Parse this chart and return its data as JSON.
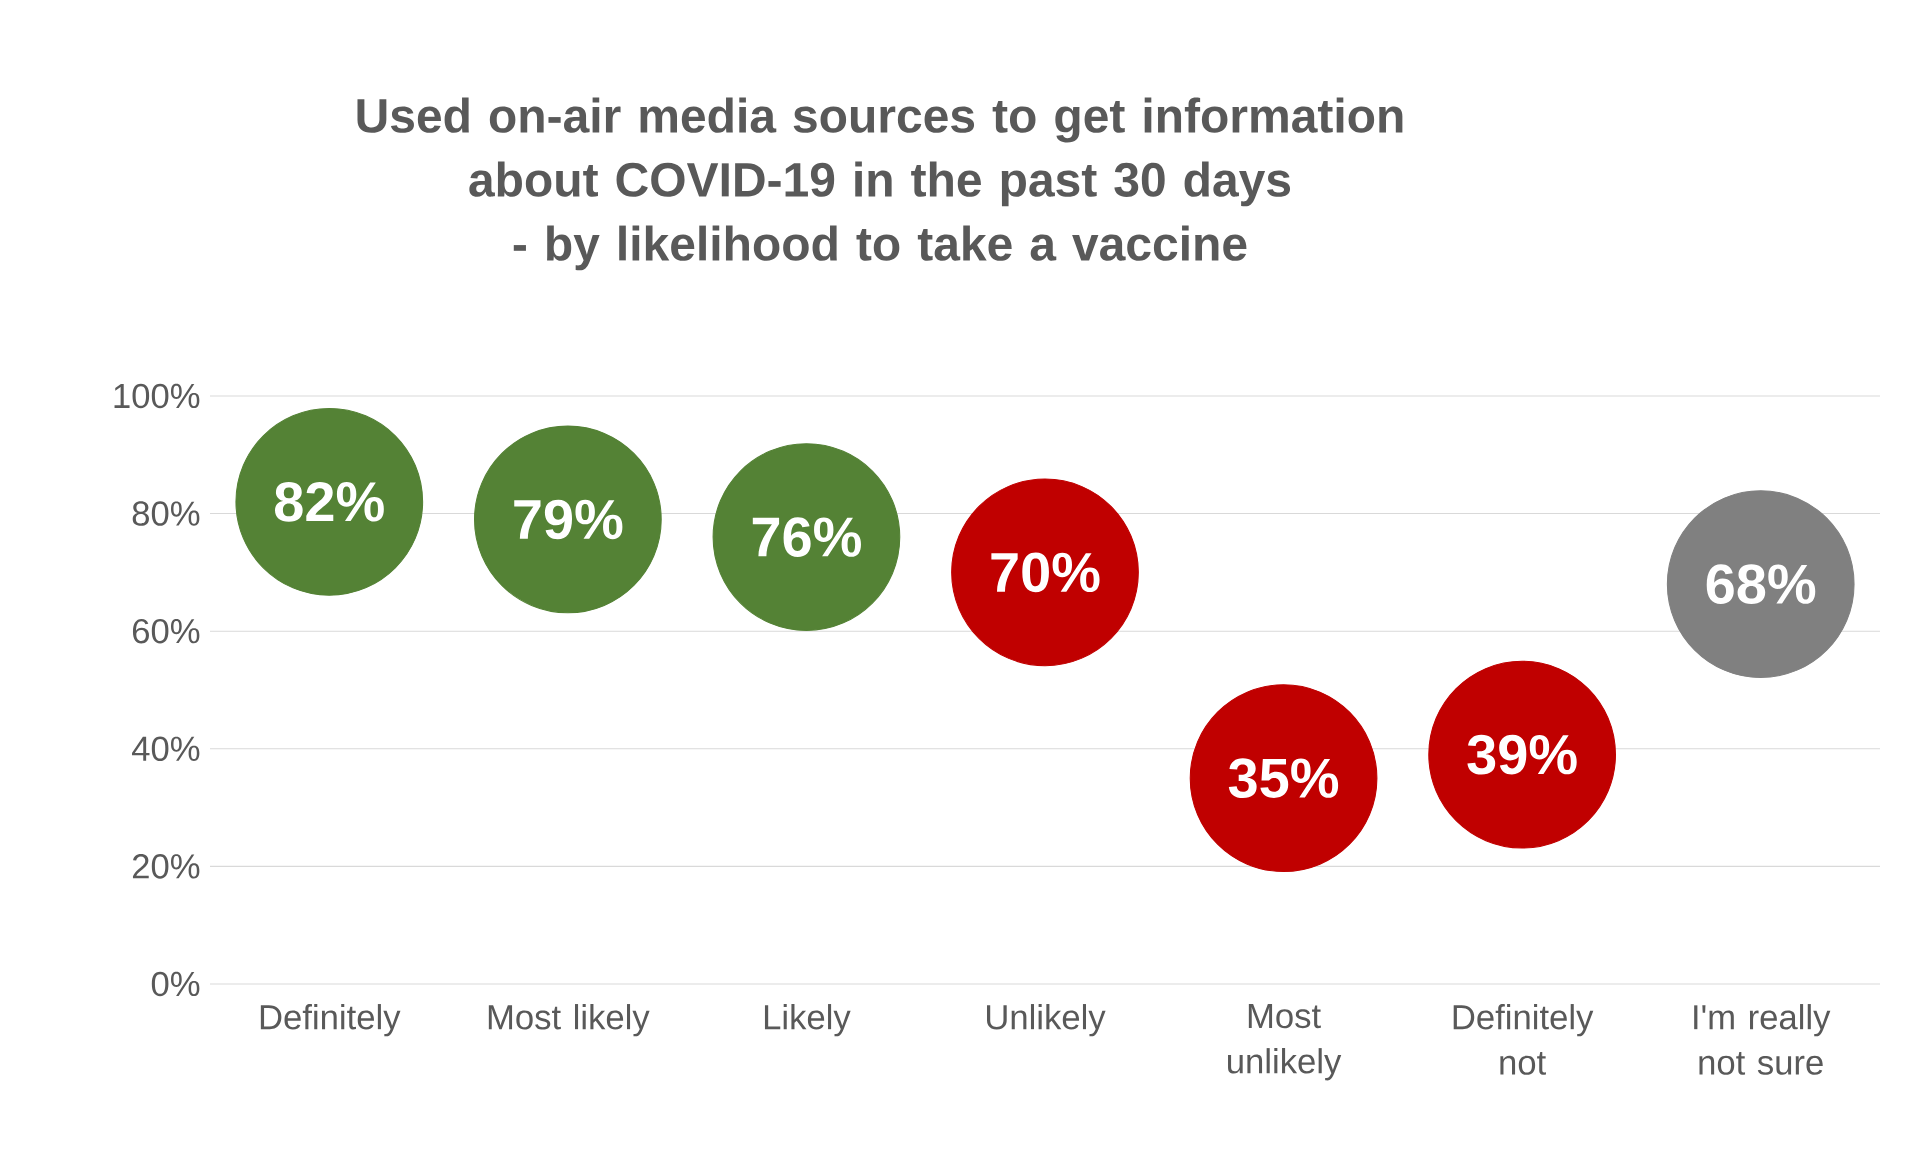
{
  "chart_data": {
    "type": "scatter",
    "title": "Used on-air media sources to get information about COVID-19 in the past 30 days",
    "subtitle": "- by likelihood to take a vaccine",
    "categories": [
      "Definitely",
      "Most likely",
      "Likely",
      "Unlikely",
      "Most unlikely",
      "Definitely not",
      "I'm really not sure"
    ],
    "values": [
      82,
      79,
      76,
      70,
      35,
      39,
      68
    ],
    "value_labels": [
      "82%",
      "79%",
      "76%",
      "70%",
      "35%",
      "39%",
      "68%"
    ],
    "colors": [
      "#548235",
      "#548235",
      "#548235",
      "#c00000",
      "#c00000",
      "#c00000",
      "#808080"
    ],
    "marker": "circle",
    "ylim": [
      0,
      100
    ],
    "yticks": [
      {
        "value": 0,
        "label": "0%"
      },
      {
        "value": 20,
        "label": "20%"
      },
      {
        "value": 40,
        "label": "40%"
      },
      {
        "value": 60,
        "label": "60%"
      },
      {
        "value": 80,
        "label": "80%"
      },
      {
        "value": 100,
        "label": "100%"
      }
    ],
    "grid": "y"
  }
}
